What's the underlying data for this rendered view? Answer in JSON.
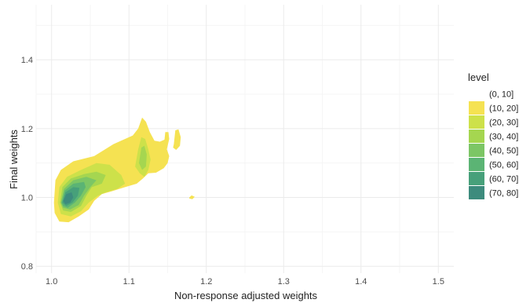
{
  "chart_data": {
    "type": "contour",
    "xlabel": "Non-response adjusted weights",
    "ylabel": "Final weights",
    "xlim": [
      0.98,
      1.52
    ],
    "ylim": [
      0.78,
      1.56
    ],
    "x_ticks": [
      1.0,
      1.1,
      1.2,
      1.3,
      1.4,
      1.5
    ],
    "x_tick_labels": [
      "1.0",
      "1.1",
      "1.2",
      "1.3",
      "1.4",
      "1.5"
    ],
    "y_ticks": [
      0.8,
      1.0,
      1.2,
      1.4
    ],
    "y_tick_labels": [
      "0.8",
      "1.0",
      "1.2",
      "1.4"
    ],
    "grid": true,
    "legend": {
      "title": "level",
      "position": "right",
      "entries": [
        {
          "label": "(0, 10]",
          "color": "#ffffff"
        },
        {
          "label": "(10, 20]",
          "color": "#f5e252"
        },
        {
          "label": "(20, 30]",
          "color": "#cde14a"
        },
        {
          "label": "(30, 40]",
          "color": "#a5d650"
        },
        {
          "label": "(40, 50]",
          "color": "#7cc665"
        },
        {
          "label": "(50, 60]",
          "color": "#5bb474"
        },
        {
          "label": "(60, 70]",
          "color": "#47a07a"
        },
        {
          "label": "(70, 80]",
          "color": "#3d8b7d"
        }
      ]
    },
    "levels": [
      {
        "level": "(10, 20]",
        "polygons": [
          [
            [
              1.003,
              0.985
            ],
            [
              1.005,
              1.05
            ],
            [
              1.012,
              1.08
            ],
            [
              1.028,
              1.105
            ],
            [
              1.055,
              1.12
            ],
            [
              1.08,
              1.155
            ],
            [
              1.105,
              1.18
            ],
            [
              1.112,
              1.2
            ],
            [
              1.117,
              1.232
            ],
            [
              1.122,
              1.22
            ],
            [
              1.127,
              1.19
            ],
            [
              1.133,
              1.165
            ],
            [
              1.14,
              1.162
            ],
            [
              1.146,
              1.168
            ],
            [
              1.147,
              1.19
            ],
            [
              1.151,
              1.19
            ],
            [
              1.152,
              1.17
            ],
            [
              1.149,
              1.14
            ],
            [
              1.152,
              1.12
            ],
            [
              1.15,
              1.1
            ],
            [
              1.145,
              1.085
            ],
            [
              1.135,
              1.072
            ],
            [
              1.125,
              1.07
            ],
            [
              1.118,
              1.055
            ],
            [
              1.11,
              1.04
            ],
            [
              1.095,
              1.03
            ],
            [
              1.078,
              1.018
            ],
            [
              1.065,
              1.01
            ],
            [
              1.055,
              0.99
            ],
            [
              1.048,
              0.965
            ],
            [
              1.035,
              0.945
            ],
            [
              1.022,
              0.928
            ],
            [
              1.01,
              0.93
            ],
            [
              1.004,
              0.955
            ]
          ],
          [
            [
              1.158,
              1.155
            ],
            [
              1.16,
              1.195
            ],
            [
              1.164,
              1.198
            ],
            [
              1.167,
              1.175
            ],
            [
              1.166,
              1.15
            ],
            [
              1.161,
              1.138
            ],
            [
              1.157,
              1.145
            ]
          ],
          [
            [
              1.178,
              1.0
            ],
            [
              1.181,
              1.006
            ],
            [
              1.185,
              1.002
            ],
            [
              1.182,
              0.995
            ],
            [
              1.178,
              0.997
            ]
          ]
        ]
      },
      {
        "level": "(20, 30]",
        "polygons": [
          [
            [
              1.008,
              0.985
            ],
            [
              1.01,
              1.03
            ],
            [
              1.02,
              1.06
            ],
            [
              1.038,
              1.08
            ],
            [
              1.058,
              1.1
            ],
            [
              1.075,
              1.095
            ],
            [
              1.09,
              1.065
            ],
            [
              1.095,
              1.04
            ],
            [
              1.085,
              1.025
            ],
            [
              1.07,
              1.015
            ],
            [
              1.06,
              1.005
            ],
            [
              1.048,
              0.985
            ],
            [
              1.038,
              0.96
            ],
            [
              1.025,
              0.945
            ],
            [
              1.012,
              0.952
            ]
          ],
          [
            [
              1.108,
              1.09
            ],
            [
              1.112,
              1.14
            ],
            [
              1.116,
              1.175
            ],
            [
              1.121,
              1.17
            ],
            [
              1.125,
              1.14
            ],
            [
              1.128,
              1.11
            ],
            [
              1.125,
              1.08
            ],
            [
              1.12,
              1.06
            ],
            [
              1.114,
              1.07
            ]
          ]
        ]
      },
      {
        "level": "(30, 40]",
        "polygons": [
          [
            [
              1.011,
              0.985
            ],
            [
              1.014,
              1.03
            ],
            [
              1.025,
              1.055
            ],
            [
              1.042,
              1.068
            ],
            [
              1.058,
              1.075
            ],
            [
              1.07,
              1.065
            ],
            [
              1.065,
              1.04
            ],
            [
              1.052,
              1.03
            ],
            [
              1.045,
              1.005
            ],
            [
              1.038,
              0.975
            ],
            [
              1.025,
              0.958
            ],
            [
              1.015,
              0.962
            ]
          ],
          [
            [
              1.113,
              1.1
            ],
            [
              1.116,
              1.145
            ],
            [
              1.12,
              1.15
            ],
            [
              1.123,
              1.125
            ],
            [
              1.122,
              1.09
            ],
            [
              1.117,
              1.08
            ]
          ]
        ]
      },
      {
        "level": "(40, 50]",
        "polygons": [
          [
            [
              1.012,
              0.985
            ],
            [
              1.016,
              1.025
            ],
            [
              1.028,
              1.05
            ],
            [
              1.045,
              1.06
            ],
            [
              1.058,
              1.05
            ],
            [
              1.05,
              1.03
            ],
            [
              1.042,
              1.005
            ],
            [
              1.035,
              0.978
            ],
            [
              1.024,
              0.965
            ],
            [
              1.015,
              0.97
            ]
          ]
        ]
      },
      {
        "level": "(50, 60]",
        "polygons": [
          [
            [
              1.013,
              0.985
            ],
            [
              1.017,
              1.02
            ],
            [
              1.028,
              1.04
            ],
            [
              1.042,
              1.045
            ],
            [
              1.044,
              1.03
            ],
            [
              1.038,
              1.005
            ],
            [
              1.03,
              0.985
            ],
            [
              1.021,
              0.97
            ],
            [
              1.015,
              0.975
            ]
          ]
        ]
      },
      {
        "level": "(60, 70]",
        "polygons": [
          [
            [
              1.014,
              0.985
            ],
            [
              1.018,
              1.015
            ],
            [
              1.028,
              1.03
            ],
            [
              1.036,
              1.028
            ],
            [
              1.034,
              1.005
            ],
            [
              1.027,
              0.985
            ],
            [
              1.019,
              0.975
            ]
          ]
        ]
      },
      {
        "level": "(70, 80]",
        "polygons": [
          [
            [
              1.015,
              0.99
            ],
            [
              1.019,
              1.01
            ],
            [
              1.026,
              1.015
            ],
            [
              1.028,
              1.0
            ],
            [
              1.024,
              0.985
            ],
            [
              1.018,
              0.98
            ]
          ]
        ]
      }
    ]
  }
}
